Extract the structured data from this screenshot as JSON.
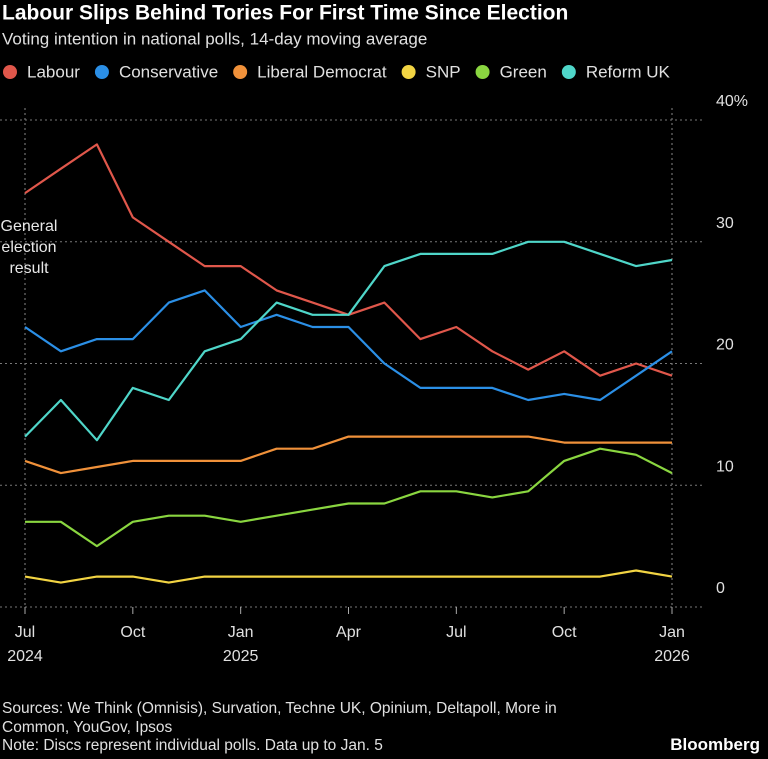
{
  "chart_data": {
    "type": "line",
    "title": "Labour Slips Behind Tories For First Time Since Election",
    "subtitle": "Voting intention in national polls, 14-day moving average",
    "x": [
      "2024-07",
      "2024-08",
      "2024-09",
      "2024-10",
      "2024-11",
      "2024-12",
      "2025-01",
      "2025-02",
      "2025-03",
      "2025-04",
      "2025-05",
      "2025-06",
      "2025-07",
      "2025-08",
      "2025-09",
      "2025-10",
      "2025-11",
      "2025-12",
      "2026-01"
    ],
    "xlim": [
      "2024-07",
      "2026-01"
    ],
    "xticks": [
      {
        "value": "2024-07",
        "label": "Jul"
      },
      {
        "value": "2024-10",
        "label": "Oct"
      },
      {
        "value": "2025-01",
        "label": "Jan"
      },
      {
        "value": "2025-04",
        "label": "Apr"
      },
      {
        "value": "2025-07",
        "label": "Jul"
      },
      {
        "value": "2025-10",
        "label": "Oct"
      },
      {
        "value": "2026-01",
        "label": "Jan"
      }
    ],
    "xtick_years": [
      {
        "value": "2024-07",
        "label": "2024"
      },
      {
        "value": "2025-01",
        "label": "2025"
      },
      {
        "value": "2026-01",
        "label": "2026"
      }
    ],
    "ylim": [
      0,
      40
    ],
    "yticks": [
      0,
      10,
      20,
      30,
      {
        "value": 40,
        "label": "40%"
      }
    ],
    "grid": true,
    "annotation": "General election result",
    "series": [
      {
        "name": "Labour",
        "color": "#e0574b",
        "values": [
          34,
          36,
          38,
          32,
          30,
          28,
          28,
          26,
          25,
          24,
          25,
          22,
          23,
          21,
          19.5,
          21,
          19,
          20,
          19
        ]
      },
      {
        "name": "Conservative",
        "color": "#2b8fe6",
        "values": [
          23,
          21,
          22,
          22,
          25,
          26,
          23,
          24,
          23,
          23,
          20,
          18,
          18,
          18,
          17,
          17.5,
          17,
          19,
          21
        ]
      },
      {
        "name": "Liberal Democrat",
        "color": "#f0913a",
        "values": [
          12,
          11,
          11.5,
          12,
          12,
          12,
          12,
          13,
          13,
          14,
          14,
          14,
          14,
          14,
          14,
          13.5,
          13.5,
          13.5,
          13.5
        ]
      },
      {
        "name": "SNP",
        "color": "#f2d443",
        "values": [
          2.5,
          2,
          2.5,
          2.5,
          2,
          2.5,
          2.5,
          2.5,
          2.5,
          2.5,
          2.5,
          2.5,
          2.5,
          2.5,
          2.5,
          2.5,
          2.5,
          3,
          2.5
        ]
      },
      {
        "name": "Green",
        "color": "#8ad640",
        "values": [
          7,
          7,
          5,
          7,
          7.5,
          7.5,
          7,
          7.5,
          8,
          8.5,
          8.5,
          9.5,
          9.5,
          9,
          9.5,
          12,
          13,
          12.5,
          11
        ]
      },
      {
        "name": "Reform UK",
        "color": "#4fd6c9",
        "values": [
          14,
          17,
          13.7,
          18,
          17,
          21,
          22,
          25,
          24,
          24,
          28,
          29,
          29,
          29,
          30,
          30,
          29,
          28,
          28.5
        ]
      }
    ]
  },
  "footer": {
    "sources": "Sources: We Think (Omnisis), Survation, Techne UK, Opinium, Deltapoll, More in Common, YouGov, Ipsos",
    "note": "Note: Discs represent individual polls. Data up to Jan. 5",
    "brand": "Bloomberg"
  }
}
